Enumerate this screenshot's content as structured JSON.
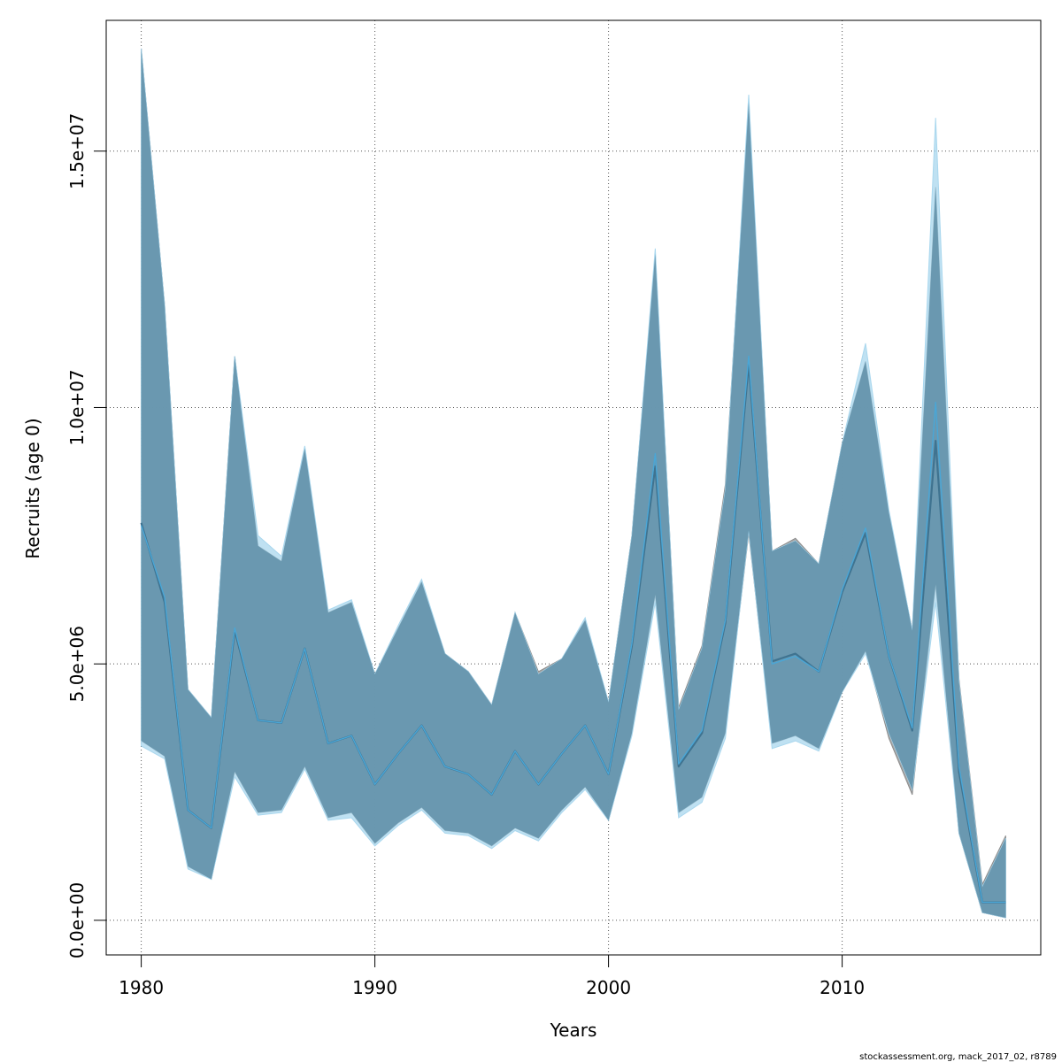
{
  "chart_data": {
    "type": "area",
    "xlabel": "Years",
    "ylabel": "Recruits (age 0)",
    "xlim": [
      1978.5,
      2018.5
    ],
    "ylim": [
      -675000,
      17550000
    ],
    "x_ticks": [
      1980,
      1990,
      2000,
      2010
    ],
    "x_tick_labels": [
      "1980",
      "1990",
      "2000",
      "2010"
    ],
    "y_ticks": [
      0,
      5000000,
      10000000,
      15000000
    ],
    "y_tick_labels": [
      "0.0e+00",
      "5.0e+06",
      "1.0e+07",
      "1.5e+07"
    ],
    "grid": true,
    "years": [
      1980,
      1981,
      1982,
      1983,
      1984,
      1985,
      1986,
      1987,
      1988,
      1989,
      1990,
      1991,
      1992,
      1993,
      1994,
      1995,
      1996,
      1997,
      1998,
      1999,
      2000,
      2001,
      2002,
      2003,
      2004,
      2005,
      2006,
      2007,
      2008,
      2009,
      2010,
      2011,
      2012,
      2013,
      2014,
      2015,
      2016,
      2017
    ],
    "series": [
      {
        "color": "#5f8fa8",
        "band_color": "#8c8c8c",
        "line_color": "#3f7390",
        "values": [
          7750000,
          6200000,
          2150000,
          1800000,
          5650000,
          3900000,
          3850000,
          5300000,
          3450000,
          3600000,
          2650000,
          3250000,
          3800000,
          3000000,
          2850000,
          2450000,
          3300000,
          2650000,
          3250000,
          3800000,
          2850000,
          5350000,
          8850000,
          3000000,
          3650000,
          5800000,
          10850000,
          5050000,
          5200000,
          4850000,
          6400000,
          7550000,
          5150000,
          3700000,
          9350000,
          2900000,
          350000,
          350000
        ],
        "lower": [
          3500000,
          3200000,
          1050000,
          800000,
          2900000,
          2100000,
          2150000,
          3000000,
          2000000,
          2100000,
          1500000,
          1900000,
          2200000,
          1750000,
          1700000,
          1450000,
          1800000,
          1600000,
          2150000,
          2600000,
          1950000,
          3650000,
          6350000,
          2100000,
          2400000,
          3650000,
          7550000,
          3450000,
          3600000,
          3350000,
          4450000,
          5250000,
          3550000,
          2450000,
          6550000,
          1700000,
          150000,
          50000
        ],
        "upper": [
          17000000,
          12000000,
          4500000,
          3950000,
          11000000,
          7300000,
          7000000,
          9200000,
          6000000,
          6200000,
          4800000,
          5700000,
          6600000,
          5200000,
          4850000,
          4200000,
          6000000,
          4850000,
          5100000,
          5850000,
          4250000,
          7500000,
          13000000,
          4150000,
          5350000,
          8500000,
          15950000,
          7200000,
          7450000,
          6950000,
          9300000,
          10900000,
          7950000,
          5650000,
          14300000,
          4700000,
          700000,
          1650000
        ]
      },
      {
        "color": "#87ceeb",
        "band_color": "#a9d7ee",
        "line_color": "#4aa6d6",
        "values": [
          7700000,
          6300000,
          2150000,
          1800000,
          5700000,
          3900000,
          3850000,
          5300000,
          3450000,
          3600000,
          2650000,
          3250000,
          3800000,
          3000000,
          2850000,
          2450000,
          3300000,
          2650000,
          3250000,
          3800000,
          2850000,
          5400000,
          9100000,
          3050000,
          3700000,
          5850000,
          11000000,
          5000000,
          5150000,
          4850000,
          6450000,
          7650000,
          5150000,
          3750000,
          10100000,
          3000000,
          350000,
          350000
        ],
        "lower": [
          3400000,
          3150000,
          1000000,
          800000,
          2800000,
          2050000,
          2100000,
          2950000,
          1950000,
          2000000,
          1450000,
          1850000,
          2150000,
          1700000,
          1650000,
          1400000,
          1750000,
          1550000,
          2100000,
          2550000,
          1950000,
          3600000,
          6200000,
          2000000,
          2300000,
          3550000,
          7600000,
          3350000,
          3500000,
          3300000,
          4450000,
          5200000,
          3650000,
          2550000,
          6200000,
          1700000,
          150000,
          50000
        ],
        "upper": [
          17000000,
          12000000,
          4500000,
          3950000,
          11000000,
          7500000,
          7100000,
          9250000,
          6050000,
          6250000,
          4800000,
          5750000,
          6650000,
          5200000,
          4850000,
          4200000,
          6000000,
          4800000,
          5100000,
          5900000,
          4250000,
          7500000,
          13100000,
          4100000,
          5300000,
          8400000,
          16100000,
          7200000,
          7400000,
          6950000,
          9300000,
          11250000,
          8000000,
          5650000,
          15650000,
          4650000,
          650000,
          1600000
        ]
      }
    ]
  },
  "footer": {
    "credit": "stockassessment.org, mack_2017_02, r8789"
  }
}
